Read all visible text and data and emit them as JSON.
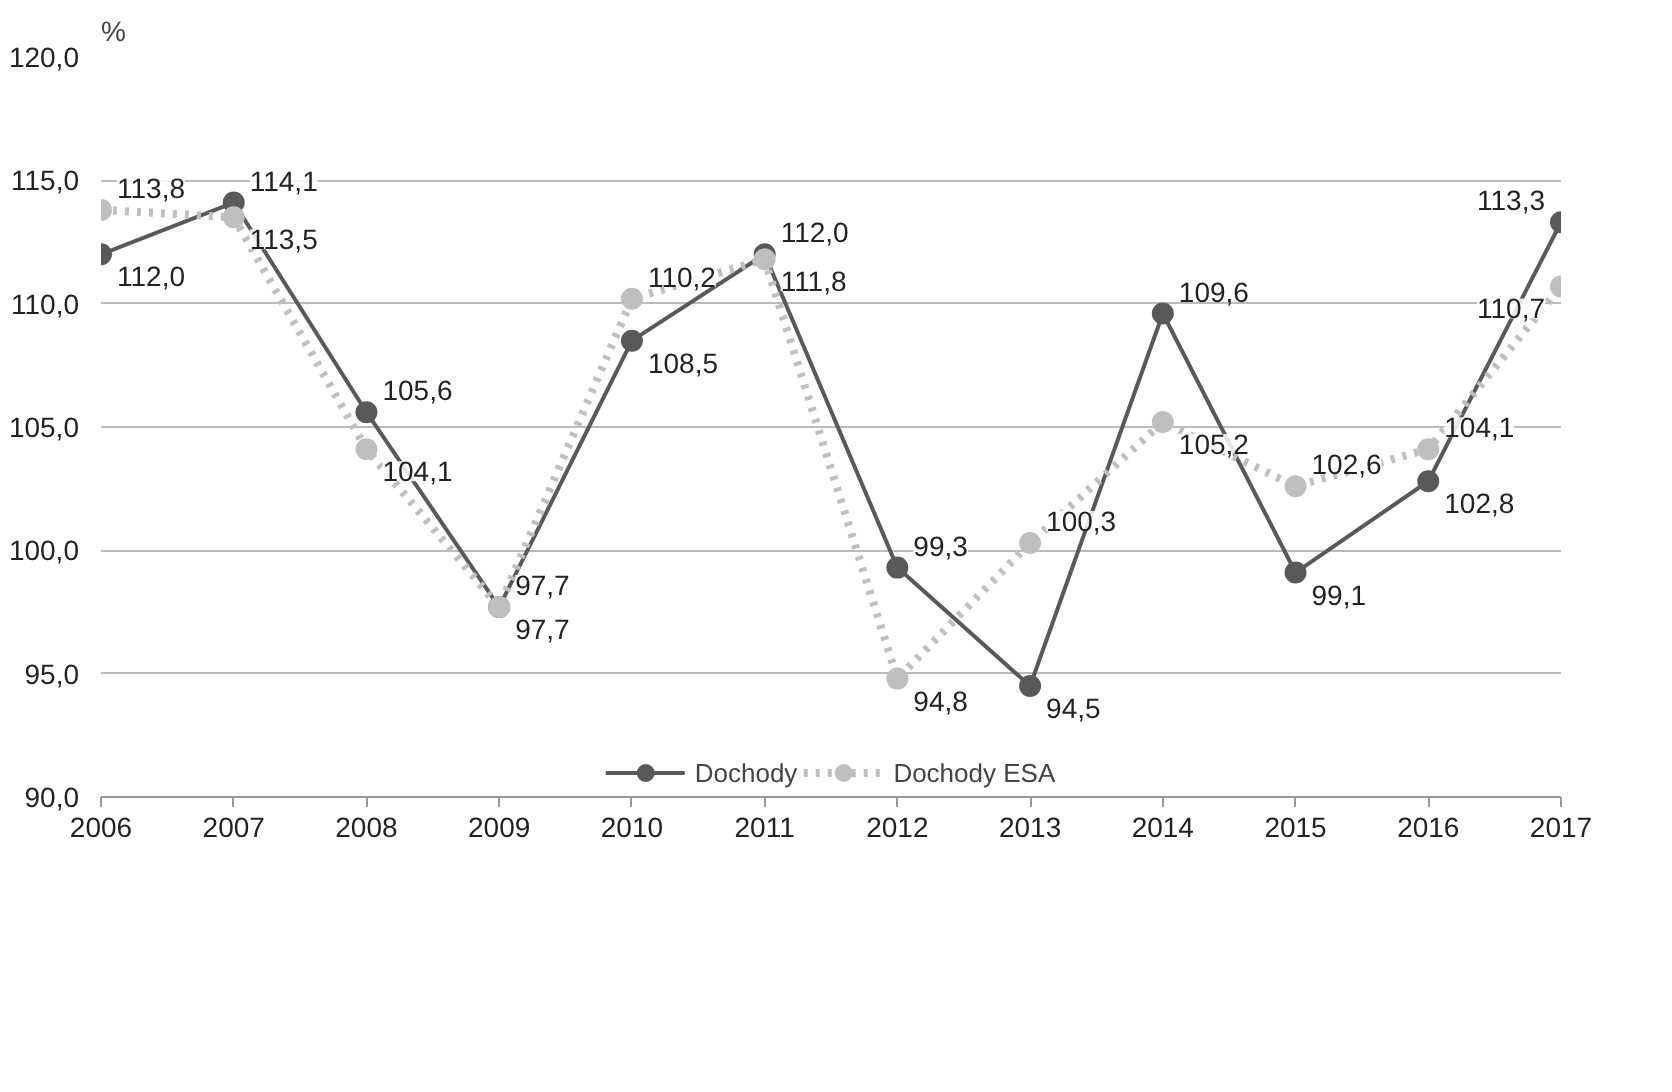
{
  "chart_data": {
    "type": "line",
    "ylabel": "%",
    "x": [
      2006,
      2007,
      2008,
      2009,
      2010,
      2011,
      2012,
      2013,
      2014,
      2015,
      2016,
      2017
    ],
    "xlim": [
      2006,
      2017
    ],
    "xticks": [
      2006,
      2007,
      2008,
      2009,
      2010,
      2011,
      2012,
      2013,
      2014,
      2015,
      2016,
      2017
    ],
    "ylim": [
      90,
      120
    ],
    "yticks": [
      {
        "value": 90,
        "label": "90,0"
      },
      {
        "value": 95,
        "label": "95,0"
      },
      {
        "value": 100,
        "label": "100,0"
      },
      {
        "value": 105,
        "label": "105,0"
      },
      {
        "value": 110,
        "label": "110,0"
      },
      {
        "value": 115,
        "label": "115,0"
      },
      {
        "value": 120,
        "label": "120,0"
      }
    ],
    "grid": "y",
    "legend": "bottom",
    "marker": "circle",
    "series": [
      {
        "name": "Dochody",
        "color": "#595959",
        "line_style": "solid",
        "values": [
          112.0,
          114.1,
          105.6,
          97.7,
          108.5,
          112.0,
          99.3,
          94.5,
          109.6,
          99.1,
          102.8,
          113.3
        ],
        "value_labels": [
          "112,0",
          "114,1",
          "105,6",
          "97,7",
          "108,5",
          "112,0",
          "99,3",
          "94,5",
          "109,6",
          "99,1",
          "102,8",
          "113,3"
        ]
      },
      {
        "name": "Dochody ESA",
        "color": "#bfbfbf",
        "line_style": "dotted",
        "values": [
          113.8,
          113.5,
          104.1,
          97.7,
          110.2,
          111.8,
          94.8,
          100.3,
          105.2,
          102.6,
          104.1,
          110.7
        ],
        "value_labels": [
          "113,8",
          "113,5",
          "104,1",
          "97,7",
          "110,2",
          "111,8",
          "94,8",
          "100,3",
          "105,2",
          "102,6",
          "104,1",
          "110,7"
        ]
      }
    ]
  }
}
